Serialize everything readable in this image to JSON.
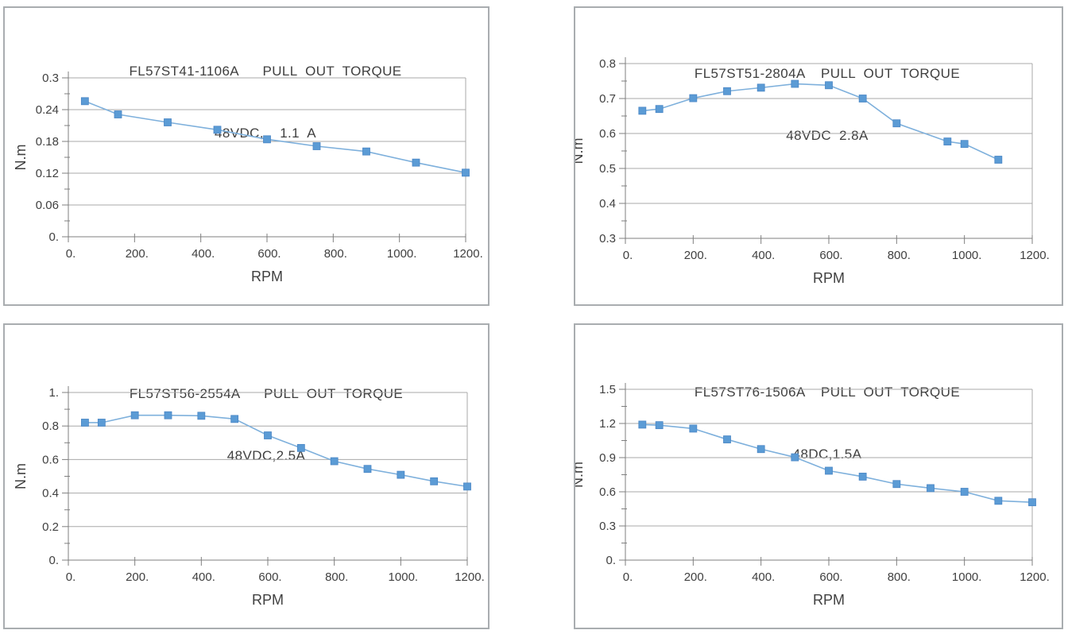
{
  "style": {
    "marker_color": "#5b9bd5",
    "marker_edge": "#4a86c5",
    "line_color": "#7eb0dc",
    "grid_color": "#a8a8a8",
    "axis_color": "#7f7f7f",
    "text_color": "#404040",
    "panel_border": "#a9adb0"
  },
  "chart_data": [
    {
      "type": "line",
      "title": "FL57ST41-1106A   PULL OUT TORQUE",
      "subtitle": "48VDC,  1.1 A",
      "xlabel": "RPM",
      "ylabel": "N.m",
      "xlim": [
        0,
        1200
      ],
      "ylim": [
        0,
        0.3
      ],
      "grid": "horizontal-major",
      "legend": "none",
      "xticks": [
        {
          "value": 0,
          "label": "0."
        },
        {
          "value": 200,
          "label": "200."
        },
        {
          "value": 400,
          "label": "400."
        },
        {
          "value": 600,
          "label": "600."
        },
        {
          "value": 800,
          "label": "800."
        },
        {
          "value": 1000,
          "label": "1000."
        },
        {
          "value": 1200,
          "label": "1200."
        }
      ],
      "yticks": [
        {
          "value": 0,
          "label": "0."
        },
        {
          "value": 0.06,
          "label": "0.06"
        },
        {
          "value": 0.12,
          "label": "0.12"
        },
        {
          "value": 0.18,
          "label": "0.18"
        },
        {
          "value": 0.24,
          "label": "0.24"
        },
        {
          "value": 0.3,
          "label": "0.3"
        }
      ],
      "x": [
        50,
        150,
        300,
        450,
        600,
        750,
        900,
        1050,
        1200
      ],
      "y": [
        0.256,
        0.231,
        0.216,
        0.202,
        0.184,
        0.171,
        0.161,
        0.14,
        0.121
      ]
    },
    {
      "type": "line",
      "title": "FL57ST51-2804A  PULL OUT TORQUE",
      "subtitle": "48VDC 2.8A",
      "xlabel": "RPM",
      "ylabel": "N.m",
      "xlim": [
        0,
        1200
      ],
      "ylim": [
        0.3,
        0.8
      ],
      "grid": "horizontal-major",
      "legend": "none",
      "xticks": [
        {
          "value": 0,
          "label": "0."
        },
        {
          "value": 200,
          "label": "200."
        },
        {
          "value": 400,
          "label": "400."
        },
        {
          "value": 600,
          "label": "600."
        },
        {
          "value": 800,
          "label": "800."
        },
        {
          "value": 1000,
          "label": "1000."
        },
        {
          "value": 1200,
          "label": "1200."
        }
      ],
      "yticks": [
        {
          "value": 0.3,
          "label": "0.3"
        },
        {
          "value": 0.4,
          "label": "0.4"
        },
        {
          "value": 0.5,
          "label": "0.5"
        },
        {
          "value": 0.6,
          "label": "0.6"
        },
        {
          "value": 0.7,
          "label": "0.7"
        },
        {
          "value": 0.8,
          "label": "0.8"
        }
      ],
      "x": [
        50,
        100,
        200,
        300,
        400,
        500,
        600,
        700,
        800,
        950,
        1000,
        1100
      ],
      "y": [
        0.665,
        0.67,
        0.701,
        0.721,
        0.731,
        0.742,
        0.738,
        0.7,
        0.629,
        0.577,
        0.57,
        0.525
      ]
    },
    {
      "type": "line",
      "title": "FL57ST56-2554A   PULL OUT TORQUE",
      "subtitle": "48VDC,2.5A",
      "xlabel": "RPM",
      "ylabel": "N.m",
      "xlim": [
        0,
        1200
      ],
      "ylim": [
        0,
        1
      ],
      "grid": "horizontal-major",
      "legend": "none",
      "xticks": [
        {
          "value": 0,
          "label": "0."
        },
        {
          "value": 200,
          "label": "200."
        },
        {
          "value": 400,
          "label": "400."
        },
        {
          "value": 600,
          "label": "600."
        },
        {
          "value": 800,
          "label": "800."
        },
        {
          "value": 1000,
          "label": "1000."
        },
        {
          "value": 1200,
          "label": "1200."
        }
      ],
      "yticks": [
        {
          "value": 0,
          "label": "0."
        },
        {
          "value": 0.2,
          "label": "0.2"
        },
        {
          "value": 0.4,
          "label": "0.4"
        },
        {
          "value": 0.6,
          "label": "0.6"
        },
        {
          "value": 0.8,
          "label": "0.8"
        },
        {
          "value": 1,
          "label": "1."
        }
      ],
      "x": [
        50,
        100,
        200,
        300,
        400,
        500,
        600,
        700,
        800,
        900,
        1000,
        1100,
        1200
      ],
      "y": [
        0.82,
        0.82,
        0.864,
        0.864,
        0.861,
        0.842,
        0.744,
        0.669,
        0.59,
        0.544,
        0.509,
        0.47,
        0.439
      ]
    },
    {
      "type": "line",
      "title": "FL57ST76-1506A  PULL OUT TORQUE",
      "subtitle": "48DC,1.5A",
      "xlabel": "RPM",
      "ylabel": "N.m",
      "xlim": [
        0,
        1200
      ],
      "ylim": [
        0,
        1.5
      ],
      "grid": "horizontal-major",
      "legend": "none",
      "xticks": [
        {
          "value": 0,
          "label": "0."
        },
        {
          "value": 200,
          "label": "200."
        },
        {
          "value": 400,
          "label": "400."
        },
        {
          "value": 600,
          "label": "600."
        },
        {
          "value": 800,
          "label": "800."
        },
        {
          "value": 1000,
          "label": "1000."
        },
        {
          "value": 1200,
          "label": "1200."
        }
      ],
      "yticks": [
        {
          "value": 0,
          "label": "0."
        },
        {
          "value": 0.3,
          "label": "0.3"
        },
        {
          "value": 0.6,
          "label": "0.6"
        },
        {
          "value": 0.9,
          "label": "0.9"
        },
        {
          "value": 1.2,
          "label": "1.2"
        },
        {
          "value": 1.5,
          "label": "1.5"
        }
      ],
      "x": [
        50,
        100,
        200,
        300,
        400,
        500,
        600,
        700,
        800,
        900,
        1000,
        1100,
        1200
      ],
      "y": [
        1.19,
        1.185,
        1.155,
        1.06,
        0.975,
        0.903,
        0.785,
        0.733,
        0.668,
        0.632,
        0.6,
        0.521,
        0.508
      ]
    }
  ]
}
